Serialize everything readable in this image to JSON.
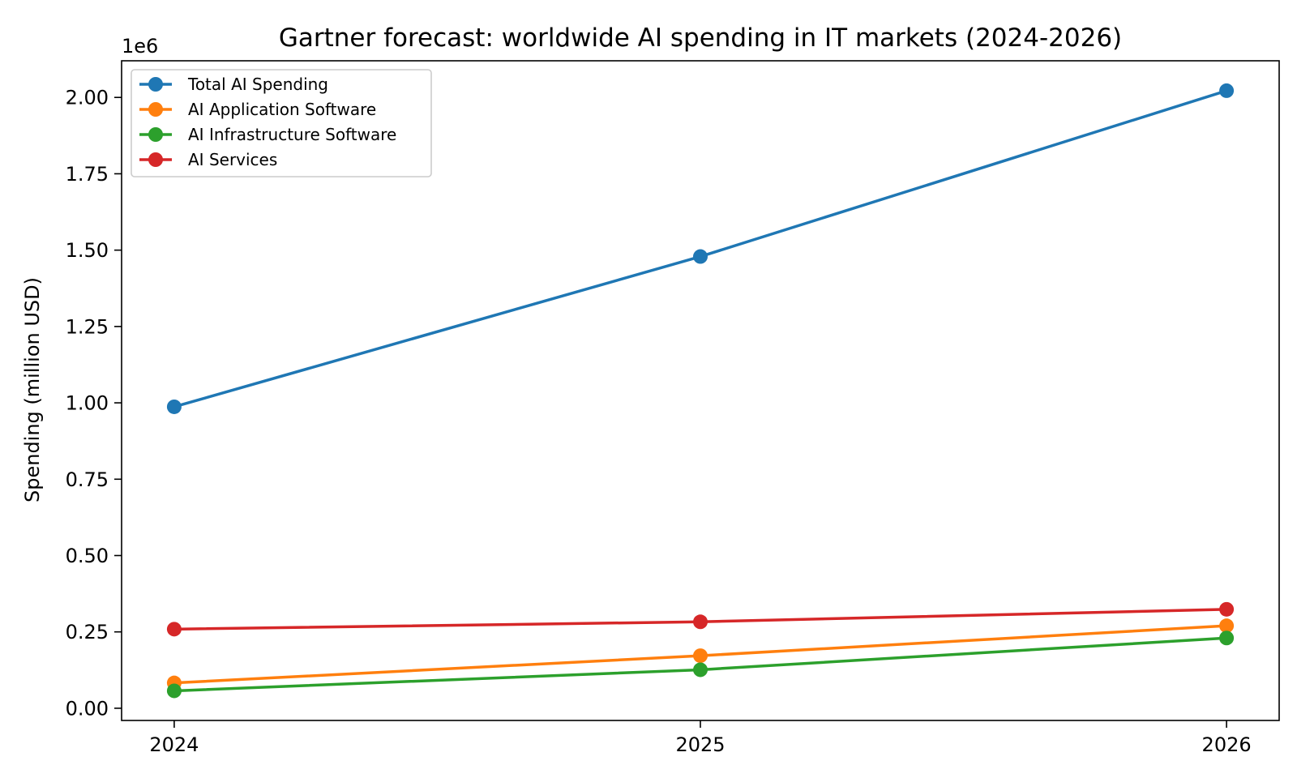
{
  "chart_data": {
    "type": "line",
    "title": "Gartner forecast: worldwide AI spending in IT markets (2024-2026)",
    "xlabel": "",
    "ylabel": "Spending (million USD)",
    "offset_label": "1e6",
    "x": [
      2024,
      2025,
      2026
    ],
    "x_tick_labels": [
      "2024",
      "2025",
      "2026"
    ],
    "ylim": [
      -40000,
      2120000
    ],
    "y_ticks": [
      0,
      250000,
      500000,
      750000,
      1000000,
      1250000,
      1500000,
      1750000,
      2000000
    ],
    "y_tick_labels": [
      "0.00",
      "0.25",
      "0.50",
      "0.75",
      "1.00",
      "1.25",
      "1.50",
      "1.75",
      "2.00"
    ],
    "grid": false,
    "legend_position": "top-left",
    "series": [
      {
        "name": "Total AI Spending",
        "color": "#1f77b4",
        "values": [
          987000,
          1479000,
          2022000
        ]
      },
      {
        "name": "AI Application Software",
        "color": "#ff7f0e",
        "values": [
          83000,
          172000,
          270000
        ]
      },
      {
        "name": "AI Infrastructure Software",
        "color": "#2ca02c",
        "values": [
          57000,
          126000,
          230000
        ]
      },
      {
        "name": "AI Services",
        "color": "#d62728",
        "values": [
          259000,
          283000,
          324000
        ]
      }
    ]
  }
}
